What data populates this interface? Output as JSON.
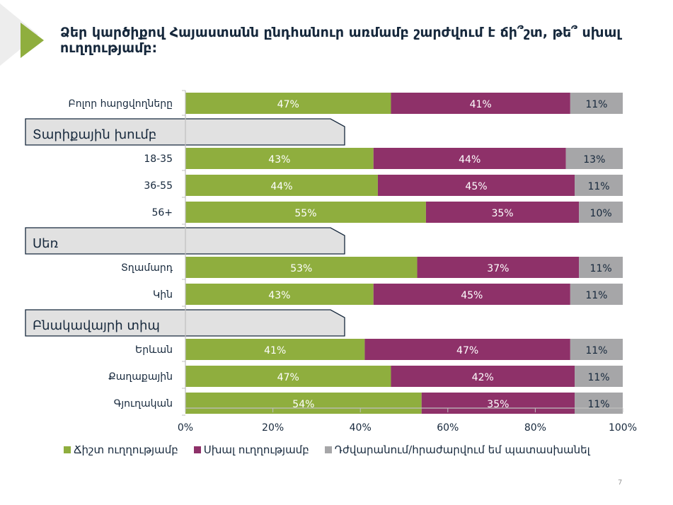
{
  "title": "Ձեր կարծիքով Հայաստանն ընդհանուր առմամբ շարժվում է ճի՞շտ, թե՞ սխալ ուղղությամբ:",
  "page_number": "7",
  "colors": {
    "correct": "#8fae3e",
    "wrong": "#8e3169",
    "dk": "#a6a6a8",
    "banner_fill": "#e1e1e1",
    "banner_stroke": "#16283c",
    "accent": "#8fae3e"
  },
  "chart_data": {
    "type": "bar",
    "orientation": "horizontal",
    "stacked": true,
    "title": "Ձեր կարծիքով Հայաստանն ընդհանուր առմամբ շարժվում է ճի՞շտ, թե՞ սխալ ուղղությամբ:",
    "xlabel": "",
    "ylabel": "",
    "xlim": [
      0,
      100
    ],
    "x_ticks": [
      "0%",
      "20%",
      "40%",
      "60%",
      "80%",
      "100%"
    ],
    "grid": false,
    "legend_position": "bottom",
    "legend": [
      "Ճիշտ ուղղությամբ",
      "Սխալ ուղղությամբ",
      "Դժվարանում/հրաժարվում եմ պատասխանել"
    ],
    "groups": [
      {
        "header": "",
        "rows": [
          {
            "label": "Բոլոր հարցվողները",
            "values": [
              47,
              41,
              11
            ],
            "labels": [
              "47%",
              "41%",
              "11%"
            ]
          }
        ]
      },
      {
        "header": "Տարիքային խումբ",
        "rows": [
          {
            "label": "18-35",
            "values": [
              43,
              44,
              13
            ],
            "labels": [
              "43%",
              "44%",
              "13%"
            ]
          },
          {
            "label": "36-55",
            "values": [
              44,
              45,
              11
            ],
            "labels": [
              "44%",
              "45%",
              "11%"
            ]
          },
          {
            "label": "56+",
            "values": [
              55,
              35,
              10
            ],
            "labels": [
              "55%",
              "35%",
              "10%"
            ]
          }
        ]
      },
      {
        "header": "Սեռ",
        "rows": [
          {
            "label": "Տղամարդ",
            "values": [
              53,
              37,
              11
            ],
            "labels": [
              "53%",
              "37%",
              "11%"
            ]
          },
          {
            "label": "Կին",
            "values": [
              43,
              45,
              11
            ],
            "labels": [
              "43%",
              "45%",
              "11%"
            ]
          }
        ]
      },
      {
        "header": "Բնակավայրի տիպ",
        "rows": [
          {
            "label": "Երևան",
            "values": [
              41,
              47,
              11
            ],
            "labels": [
              "41%",
              "47%",
              "11%"
            ]
          },
          {
            "label": "Քաղաքային",
            "values": [
              47,
              42,
              11
            ],
            "labels": [
              "47%",
              "42%",
              "11%"
            ]
          },
          {
            "label": "Գյուղական",
            "values": [
              54,
              35,
              11
            ],
            "labels": [
              "54%",
              "35%",
              "11%"
            ]
          }
        ]
      }
    ]
  }
}
